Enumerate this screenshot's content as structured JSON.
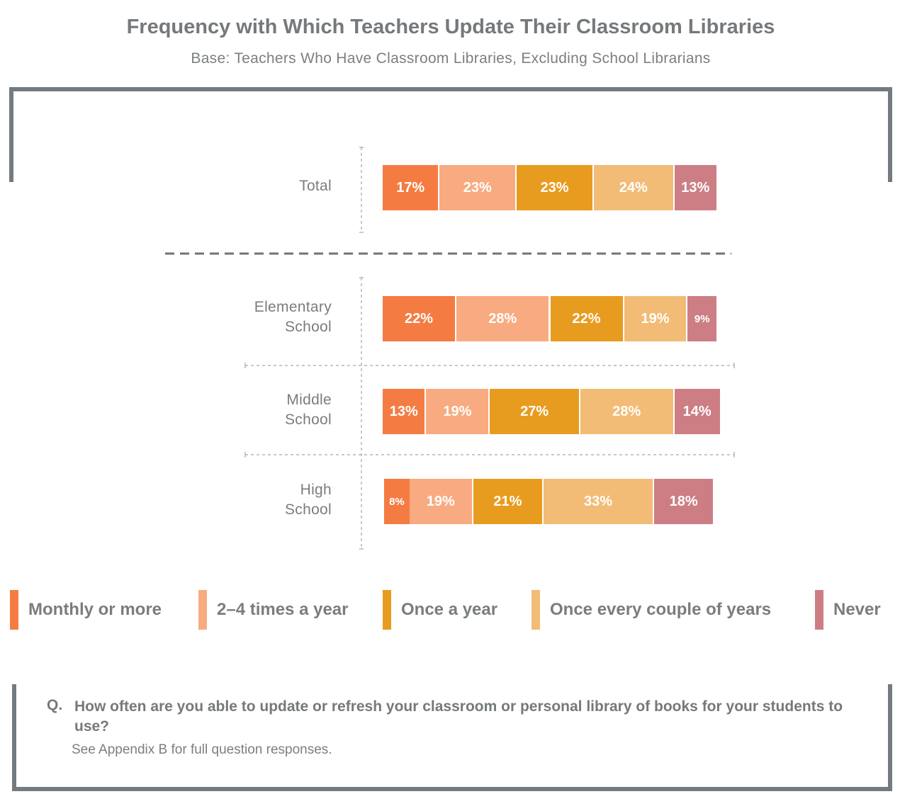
{
  "title": "Frequency with Which Teachers Update Their Classroom Libraries",
  "subtitle": "Base: Teachers Who Have Classroom Libraries, Excluding School Librarians",
  "colors": {
    "frame": "#737a80",
    "gridline": "#b5b5b5",
    "divider": "#6f7377"
  },
  "chart_data": {
    "type": "bar",
    "orientation": "horizontal",
    "stacked": true,
    "unit": "%",
    "xlim": [
      0,
      100
    ],
    "categories": [
      {
        "label": "Total",
        "lines": [
          "Total"
        ]
      },
      {
        "label": "Elementary School",
        "lines": [
          "Elementary",
          "School"
        ]
      },
      {
        "label": "Middle School",
        "lines": [
          "Middle",
          "School"
        ]
      },
      {
        "label": "High School",
        "lines": [
          "High",
          "School"
        ]
      }
    ],
    "series": [
      {
        "name": "Monthly or more",
        "color": "#f47c43",
        "values": [
          17,
          22,
          13,
          8
        ],
        "labels": [
          "17%",
          "22%",
          "13%",
          "8%"
        ]
      },
      {
        "name": "2–4 times a year",
        "color": "#f8ab80",
        "values": [
          23,
          28,
          19,
          19
        ],
        "labels": [
          "23%",
          "28%",
          "19%",
          "19%"
        ]
      },
      {
        "name": "Once a year",
        "color": "#e89c1f",
        "values": [
          23,
          22,
          27,
          21
        ],
        "labels": [
          "23%",
          "22%",
          "27%",
          "21%"
        ]
      },
      {
        "name": "Once every couple of years",
        "color": "#f2bc76",
        "values": [
          24,
          19,
          28,
          33
        ],
        "labels": [
          "24%",
          "19%",
          "28%",
          "33%"
        ]
      },
      {
        "name": "Never",
        "color": "#cd7e85",
        "values": [
          13,
          9,
          14,
          18
        ],
        "labels": [
          "13%",
          "9%",
          "14%",
          "18%"
        ]
      }
    ],
    "legend": "bottom"
  },
  "question": {
    "prefix": "Q.",
    "text": "How often are you able to update or refresh your classroom or personal library of books for your students to use?",
    "note": "See Appendix B for full question responses."
  }
}
